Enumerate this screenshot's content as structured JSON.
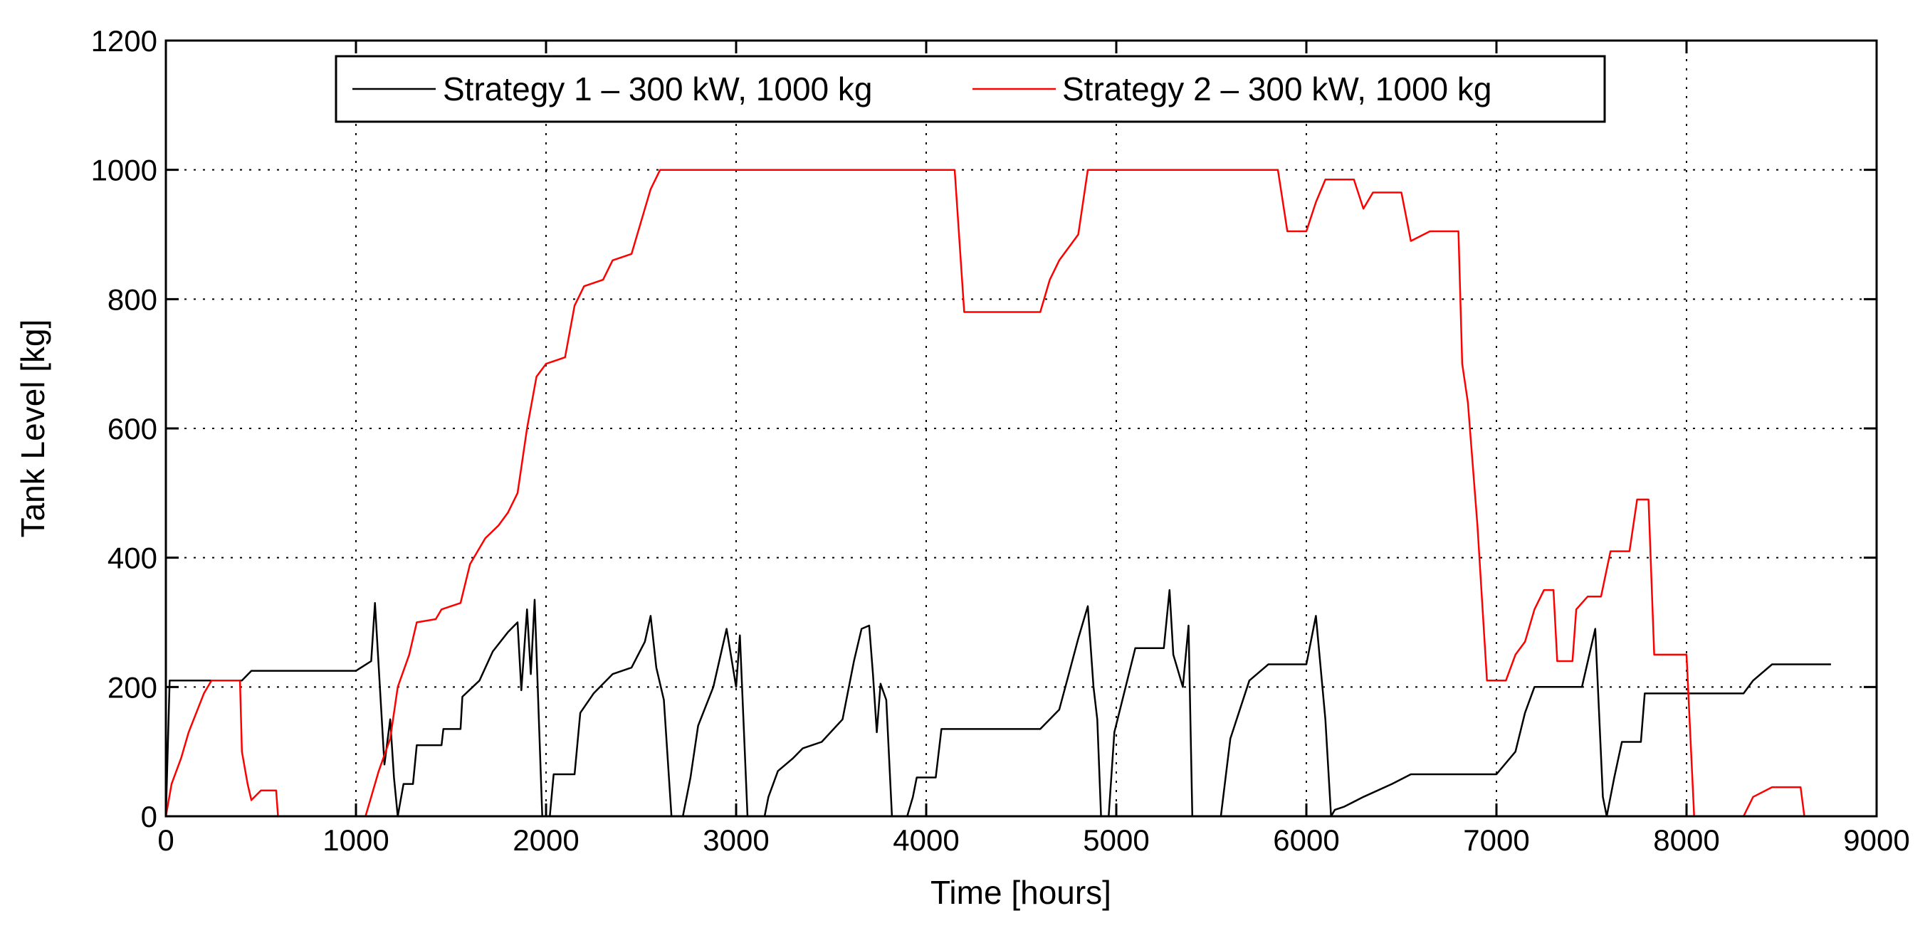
{
  "chart_data": {
    "type": "line",
    "title": "",
    "xlabel": "Time [hours]",
    "ylabel": "Tank Level [kg]",
    "xlim": [
      0,
      9000
    ],
    "ylim": [
      0,
      1200
    ],
    "xticks": [
      "0",
      "1000",
      "2000",
      "3000",
      "4000",
      "5000",
      "6000",
      "7000",
      "8000",
      "9000"
    ],
    "yticks": [
      "0",
      "200",
      "400",
      "600",
      "800",
      "1000",
      "1200"
    ],
    "grid": true,
    "legend_position": "top-center",
    "series": [
      {
        "name": "Strategy 1 – 300 kW, 1000 kg",
        "color": "#000000",
        "points": [
          [
            0,
            0
          ],
          [
            20,
            210
          ],
          [
            400,
            210
          ],
          [
            450,
            225
          ],
          [
            1000,
            225
          ],
          [
            1080,
            240
          ],
          [
            1100,
            330
          ],
          [
            1150,
            80
          ],
          [
            1180,
            150
          ],
          [
            1200,
            60
          ],
          [
            1220,
            0
          ],
          [
            1250,
            50
          ],
          [
            1300,
            50
          ],
          [
            1320,
            110
          ],
          [
            1450,
            110
          ],
          [
            1460,
            135
          ],
          [
            1550,
            135
          ],
          [
            1560,
            185
          ],
          [
            1650,
            210
          ],
          [
            1720,
            255
          ],
          [
            1800,
            285
          ],
          [
            1850,
            300
          ],
          [
            1870,
            195
          ],
          [
            1900,
            320
          ],
          [
            1920,
            220
          ],
          [
            1940,
            335
          ],
          [
            1980,
            0
          ],
          [
            2020,
            0
          ],
          [
            2040,
            65
          ],
          [
            2150,
            65
          ],
          [
            2180,
            160
          ],
          [
            2250,
            190
          ],
          [
            2350,
            220
          ],
          [
            2450,
            230
          ],
          [
            2520,
            270
          ],
          [
            2550,
            310
          ],
          [
            2580,
            230
          ],
          [
            2620,
            180
          ],
          [
            2660,
            0
          ],
          [
            2720,
            0
          ],
          [
            2760,
            60
          ],
          [
            2800,
            140
          ],
          [
            2880,
            200
          ],
          [
            2950,
            290
          ],
          [
            3000,
            200
          ],
          [
            3020,
            280
          ],
          [
            3060,
            0
          ],
          [
            3150,
            0
          ],
          [
            3170,
            30
          ],
          [
            3220,
            70
          ],
          [
            3300,
            90
          ],
          [
            3350,
            105
          ],
          [
            3450,
            115
          ],
          [
            3560,
            150
          ],
          [
            3620,
            240
          ],
          [
            3660,
            290
          ],
          [
            3700,
            295
          ],
          [
            3720,
            220
          ],
          [
            3740,
            130
          ],
          [
            3760,
            205
          ],
          [
            3790,
            180
          ],
          [
            3820,
            0
          ],
          [
            3900,
            0
          ],
          [
            3930,
            30
          ],
          [
            3950,
            60
          ],
          [
            4050,
            60
          ],
          [
            4080,
            135
          ],
          [
            4600,
            135
          ],
          [
            4700,
            165
          ],
          [
            4750,
            220
          ],
          [
            4800,
            275
          ],
          [
            4850,
            325
          ],
          [
            4880,
            200
          ],
          [
            4900,
            150
          ],
          [
            4920,
            0
          ],
          [
            4960,
            0
          ],
          [
            4990,
            130
          ],
          [
            5100,
            260
          ],
          [
            5250,
            260
          ],
          [
            5280,
            350
          ],
          [
            5300,
            250
          ],
          [
            5350,
            200
          ],
          [
            5380,
            295
          ],
          [
            5400,
            0
          ],
          [
            5550,
            0
          ],
          [
            5600,
            120
          ],
          [
            5700,
            210
          ],
          [
            5800,
            235
          ],
          [
            6000,
            235
          ],
          [
            6050,
            310
          ],
          [
            6100,
            150
          ],
          [
            6130,
            0
          ],
          [
            6150,
            10
          ],
          [
            6200,
            15
          ],
          [
            6300,
            30
          ],
          [
            6450,
            50
          ],
          [
            6550,
            65
          ],
          [
            7000,
            65
          ],
          [
            7100,
            100
          ],
          [
            7150,
            160
          ],
          [
            7200,
            200
          ],
          [
            7450,
            200
          ],
          [
            7520,
            290
          ],
          [
            7560,
            30
          ],
          [
            7580,
            0
          ],
          [
            7620,
            60
          ],
          [
            7660,
            115
          ],
          [
            7760,
            115
          ],
          [
            7780,
            190
          ],
          [
            8300,
            190
          ],
          [
            8350,
            210
          ],
          [
            8450,
            235
          ],
          [
            8760,
            235
          ]
        ]
      },
      {
        "name": "Strategy 2 – 300 kW, 1000 kg",
        "color": "#ff0000",
        "points": [
          [
            0,
            0
          ],
          [
            30,
            50
          ],
          [
            80,
            90
          ],
          [
            120,
            130
          ],
          [
            160,
            160
          ],
          [
            200,
            190
          ],
          [
            240,
            210
          ],
          [
            390,
            210
          ],
          [
            400,
            100
          ],
          [
            430,
            50
          ],
          [
            450,
            25
          ],
          [
            500,
            40
          ],
          [
            580,
            40
          ],
          [
            590,
            0
          ],
          [
            1050,
            0
          ],
          [
            1080,
            30
          ],
          [
            1120,
            70
          ],
          [
            1180,
            120
          ],
          [
            1220,
            200
          ],
          [
            1280,
            250
          ],
          [
            1320,
            300
          ],
          [
            1420,
            305
          ],
          [
            1450,
            320
          ],
          [
            1550,
            330
          ],
          [
            1600,
            390
          ],
          [
            1680,
            430
          ],
          [
            1750,
            450
          ],
          [
            1800,
            470
          ],
          [
            1850,
            500
          ],
          [
            1900,
            600
          ],
          [
            1950,
            680
          ],
          [
            2000,
            700
          ],
          [
            2100,
            710
          ],
          [
            2150,
            790
          ],
          [
            2200,
            820
          ],
          [
            2300,
            830
          ],
          [
            2350,
            860
          ],
          [
            2450,
            870
          ],
          [
            2500,
            920
          ],
          [
            2550,
            970
          ],
          [
            2600,
            1000
          ],
          [
            4150,
            1000
          ],
          [
            4200,
            780
          ],
          [
            4600,
            780
          ],
          [
            4650,
            830
          ],
          [
            4700,
            860
          ],
          [
            4800,
            900
          ],
          [
            4850,
            1000
          ],
          [
            5850,
            1000
          ],
          [
            5900,
            905
          ],
          [
            6000,
            905
          ],
          [
            6050,
            950
          ],
          [
            6100,
            985
          ],
          [
            6250,
            985
          ],
          [
            6300,
            940
          ],
          [
            6350,
            965
          ],
          [
            6500,
            965
          ],
          [
            6550,
            890
          ],
          [
            6650,
            905
          ],
          [
            6800,
            905
          ],
          [
            6820,
            700
          ],
          [
            6850,
            640
          ],
          [
            6900,
            450
          ],
          [
            6950,
            210
          ],
          [
            7050,
            210
          ],
          [
            7100,
            250
          ],
          [
            7150,
            270
          ],
          [
            7200,
            320
          ],
          [
            7250,
            350
          ],
          [
            7300,
            350
          ],
          [
            7320,
            240
          ],
          [
            7400,
            240
          ],
          [
            7420,
            320
          ],
          [
            7480,
            340
          ],
          [
            7550,
            340
          ],
          [
            7600,
            410
          ],
          [
            7700,
            410
          ],
          [
            7740,
            490
          ],
          [
            7800,
            490
          ],
          [
            7830,
            250
          ],
          [
            8000,
            250
          ],
          [
            8040,
            0
          ],
          [
            8300,
            0
          ],
          [
            8350,
            30
          ],
          [
            8450,
            45
          ],
          [
            8600,
            45
          ],
          [
            8620,
            0
          ],
          [
            8760,
            0
          ]
        ]
      }
    ]
  }
}
